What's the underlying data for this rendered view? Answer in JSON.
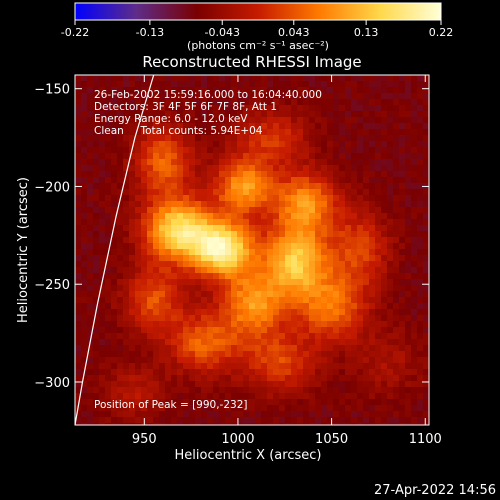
{
  "chart_data": {
    "type": "heatmap",
    "title": "Reconstructed RHESSI Image",
    "xlabel": "Heliocentric X (arcsec)",
    "ylabel": "Heliocentric Y (arcsec)",
    "xlim": [
      913,
      1102
    ],
    "ylim": [
      -322,
      -143
    ],
    "x_ticks": [
      950,
      1000,
      1050,
      1100
    ],
    "y_ticks": [
      -150,
      -200,
      -250,
      -300
    ],
    "colorbar": {
      "range": [
        -0.22,
        0.22
      ],
      "ticks": [
        "-0.22",
        "-0.13",
        "-0.043",
        "0.043",
        "0.13",
        "0.22"
      ],
      "unit_label": "(photons cm⁻² s⁻¹ asec⁻²)",
      "colormap": [
        "#0000ff",
        "#5e2c8a",
        "#7a0000",
        "#c61b00",
        "#ff7a00",
        "#ffd84a",
        "#ffffd8"
      ]
    },
    "annotations": [
      "26-Feb-2002 15:59:16.000 to 16:04:40.000",
      "Detectors: 3F 4F 5F 6F 7F 8F, Att 1",
      "Energy Range: 6.0 - 12.0 keV",
      "Clean     Total counts: 5.94E+04",
      "Position of Peak = [990,-232]"
    ],
    "sources": [
      {
        "x": 968,
        "y": -222,
        "intensity": 0.2,
        "sx": 13,
        "sy": 11
      },
      {
        "x": 992,
        "y": -232,
        "intensity": 0.22,
        "sx": 12,
        "sy": 10
      },
      {
        "x": 1031,
        "y": -238,
        "intensity": 0.18,
        "sx": 12,
        "sy": 13
      },
      {
        "x": 1003,
        "y": -200,
        "intensity": 0.15,
        "sx": 11,
        "sy": 10
      },
      {
        "x": 1036,
        "y": -208,
        "intensity": 0.14,
        "sx": 12,
        "sy": 11
      },
      {
        "x": 960,
        "y": -187,
        "intensity": 0.11,
        "sx": 11,
        "sy": 13
      },
      {
        "x": 1008,
        "y": -260,
        "intensity": 0.14,
        "sx": 12,
        "sy": 12
      },
      {
        "x": 1050,
        "y": -262,
        "intensity": 0.12,
        "sx": 13,
        "sy": 12
      },
      {
        "x": 982,
        "y": -280,
        "intensity": 0.11,
        "sx": 13,
        "sy": 11
      },
      {
        "x": 1022,
        "y": -290,
        "intensity": 0.09,
        "sx": 14,
        "sy": 11
      },
      {
        "x": 955,
        "y": -258,
        "intensity": 0.1,
        "sx": 11,
        "sy": 12
      },
      {
        "x": 1065,
        "y": -232,
        "intensity": 0.09,
        "sx": 11,
        "sy": 14
      },
      {
        "x": 1018,
        "y": -175,
        "intensity": 0.08,
        "sx": 14,
        "sy": 10
      },
      {
        "x": 945,
        "y": -305,
        "intensity": 0.05,
        "sx": 12,
        "sy": 10
      },
      {
        "x": 1080,
        "y": -290,
        "intensity": 0.04,
        "sx": 13,
        "sy": 12
      }
    ],
    "limb_curve": [
      [
        955,
        -143
      ],
      [
        945,
        -175
      ],
      [
        935,
        -215
      ],
      [
        925,
        -260
      ],
      [
        917,
        -300
      ],
      [
        913,
        -322
      ]
    ]
  },
  "footer": {
    "timestamp": "27-Apr-2022 14:56"
  }
}
